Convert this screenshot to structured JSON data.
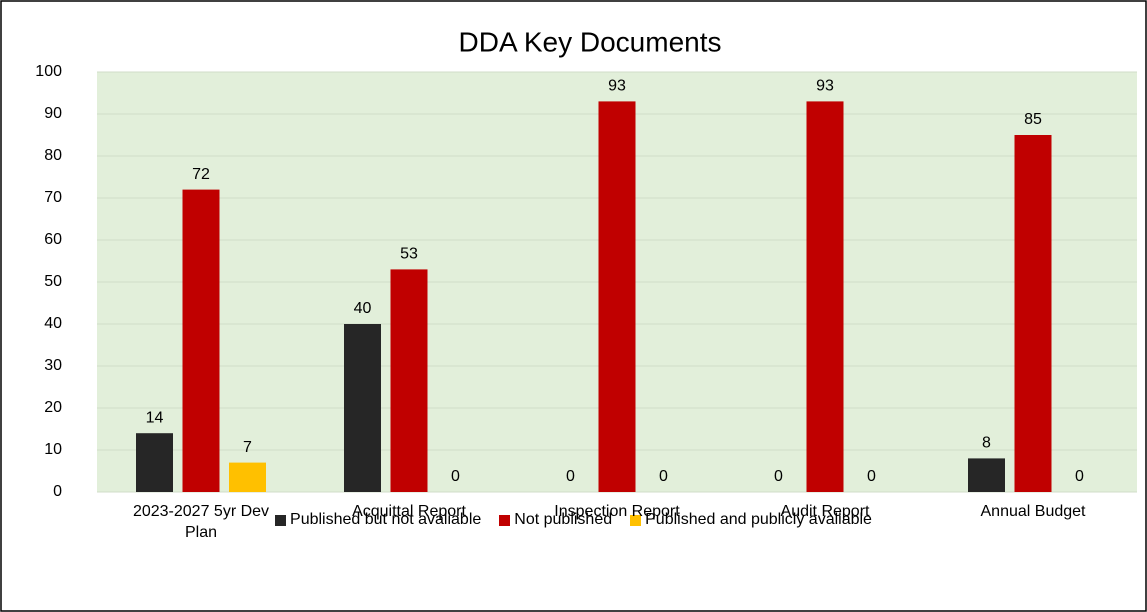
{
  "chart_data": {
    "type": "bar",
    "title": "DDA Key Documents",
    "categories": [
      "2023-2027 5yr Dev Plan",
      "Acquittal Report",
      "Inspection Report",
      "Audit Report",
      "Annual Budget"
    ],
    "series": [
      {
        "name": "Published but not avaliable",
        "color": "#262626",
        "values": [
          14,
          40,
          0,
          0,
          8
        ]
      },
      {
        "name": "Not published",
        "color": "#c00000",
        "values": [
          72,
          53,
          93,
          93,
          85
        ]
      },
      {
        "name": "Published and publicly avaliable",
        "color": "#ffc000",
        "values": [
          7,
          0,
          0,
          0,
          0
        ]
      }
    ],
    "ylim": [
      0,
      100
    ],
    "yticks": [
      0,
      10,
      20,
      30,
      40,
      50,
      60,
      70,
      80,
      90,
      100
    ],
    "grid": true,
    "legend": "bottom"
  }
}
